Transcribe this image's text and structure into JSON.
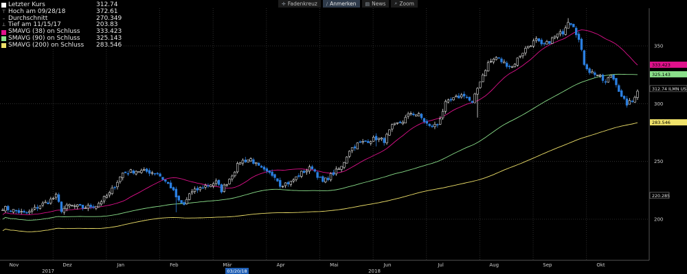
{
  "toolbar": {
    "items": [
      {
        "label": "Fadenkreuz",
        "icon": "crosshair-icon",
        "glyph": "✛",
        "active": false
      },
      {
        "label": "Anmerken",
        "icon": "pencil-icon",
        "glyph": "∕",
        "active": true
      },
      {
        "label": "News",
        "icon": "news-icon",
        "glyph": "▤",
        "active": false
      },
      {
        "label": "Zoom",
        "icon": "zoom-icon",
        "glyph": "⌕",
        "active": false
      }
    ]
  },
  "legend": [
    {
      "label": "Letzter Kurs",
      "value": "312.74",
      "marker": "square",
      "color": "#ffffff"
    },
    {
      "label": "Hoch am 09/28/18",
      "value": "372.61",
      "marker": "glyph",
      "glyph": "⊤",
      "color": "#bbbbbb"
    },
    {
      "label": "Durchschnitt",
      "value": "270.349",
      "marker": "glyph",
      "glyph": "–",
      "color": "#bbbbbb"
    },
    {
      "label": "Tief am 11/15/17",
      "value": "203.83",
      "marker": "glyph",
      "glyph": "⊥",
      "color": "#bbbbbb"
    },
    {
      "label": "SMAVG (38)  on Schluss",
      "value": "333.423",
      "marker": "square",
      "color": "#e0118c"
    },
    {
      "label": "SMAVG (90)  on Schluss",
      "value": "325.143",
      "marker": "square",
      "color": "#8be08b"
    },
    {
      "label": "SMAVG (200)  on Schluss",
      "value": "283.546",
      "marker": "square",
      "color": "#f0e26a"
    }
  ],
  "chart_data": {
    "type": "candlestick",
    "y_ticks": [
      "350",
      "300",
      "250",
      "200"
    ],
    "x_month_labels": [
      "Nov",
      "Dez",
      "Jan",
      "Feb",
      "Mär",
      "Apr",
      "Mai",
      "Jun",
      "Jul",
      "Aug",
      "Sep",
      "Okt"
    ],
    "x_year_labels": [
      "2017",
      "2018"
    ],
    "x_date_marker": "03/20/18",
    "grid": true,
    "last_price_label": "312.74 ILMN US",
    "extra_price_label": "220.285",
    "ma_labels": [
      {
        "text": "333.423",
        "color": "#e0118c"
      },
      {
        "text": "325.143",
        "color": "#8be08b"
      },
      {
        "text": "283.546",
        "color": "#f0e26a"
      }
    ],
    "colors": {
      "up": "#e6e6e6",
      "down": "#2b7fe0",
      "sma38": "#e0118c",
      "sma90": "#8be08b",
      "sma200": "#f0e26a",
      "grid": "#3a3a3a"
    },
    "ylim": [
      180,
      380
    ],
    "anchors": [
      [
        0,
        210
      ],
      [
        5,
        207
      ],
      [
        8,
        205
      ],
      [
        10,
        206
      ],
      [
        14,
        212
      ],
      [
        17,
        215
      ],
      [
        20,
        220
      ],
      [
        22,
        208
      ],
      [
        25,
        212
      ],
      [
        30,
        210
      ],
      [
        35,
        212
      ],
      [
        40,
        222
      ],
      [
        45,
        240
      ],
      [
        50,
        242
      ],
      [
        55,
        241
      ],
      [
        58,
        240
      ],
      [
        60,
        235
      ],
      [
        63,
        228
      ],
      [
        66,
        215
      ],
      [
        68,
        212
      ],
      [
        70,
        222
      ],
      [
        75,
        228
      ],
      [
        80,
        232
      ],
      [
        82,
        225
      ],
      [
        85,
        235
      ],
      [
        89,
        250
      ],
      [
        93,
        252
      ],
      [
        96,
        245
      ],
      [
        99,
        240
      ],
      [
        102,
        238
      ],
      [
        104,
        230
      ],
      [
        108,
        232
      ],
      [
        112,
        240
      ],
      [
        116,
        245
      ],
      [
        118,
        238
      ],
      [
        120,
        232
      ],
      [
        123,
        238
      ],
      [
        127,
        245
      ],
      [
        130,
        260
      ],
      [
        133,
        265
      ],
      [
        137,
        268
      ],
      [
        140,
        270
      ],
      [
        143,
        268
      ],
      [
        146,
        280
      ],
      [
        150,
        285
      ],
      [
        153,
        292
      ],
      [
        156,
        290
      ],
      [
        158,
        285
      ],
      [
        160,
        280
      ],
      [
        163,
        282
      ],
      [
        166,
        300
      ],
      [
        170,
        305
      ],
      [
        173,
        308
      ],
      [
        176,
        300
      ],
      [
        179,
        320
      ],
      [
        182,
        335
      ],
      [
        185,
        340
      ],
      [
        188,
        335
      ],
      [
        191,
        332
      ],
      [
        194,
        342
      ],
      [
        197,
        350
      ],
      [
        200,
        355
      ],
      [
        202,
        350
      ],
      [
        204,
        352
      ],
      [
        207,
        358
      ],
      [
        210,
        362
      ],
      [
        212,
        372
      ],
      [
        214,
        368
      ],
      [
        216,
        355
      ],
      [
        218,
        335
      ],
      [
        220,
        328
      ],
      [
        223,
        325
      ],
      [
        226,
        318
      ],
      [
        228,
        325
      ],
      [
        230,
        318
      ],
      [
        232,
        305
      ],
      [
        234,
        300
      ],
      [
        236,
        302
      ],
      [
        238,
        312
      ]
    ],
    "spikes": [
      [
        65,
        206
      ],
      [
        91,
        254
      ],
      [
        140,
        263
      ],
      [
        178,
        288
      ],
      [
        212,
        374
      ]
    ],
    "n_bars": 239,
    "ma_ends": {
      "sma38": 333.423,
      "sma90": 325.143,
      "sma200": 283.546
    }
  }
}
